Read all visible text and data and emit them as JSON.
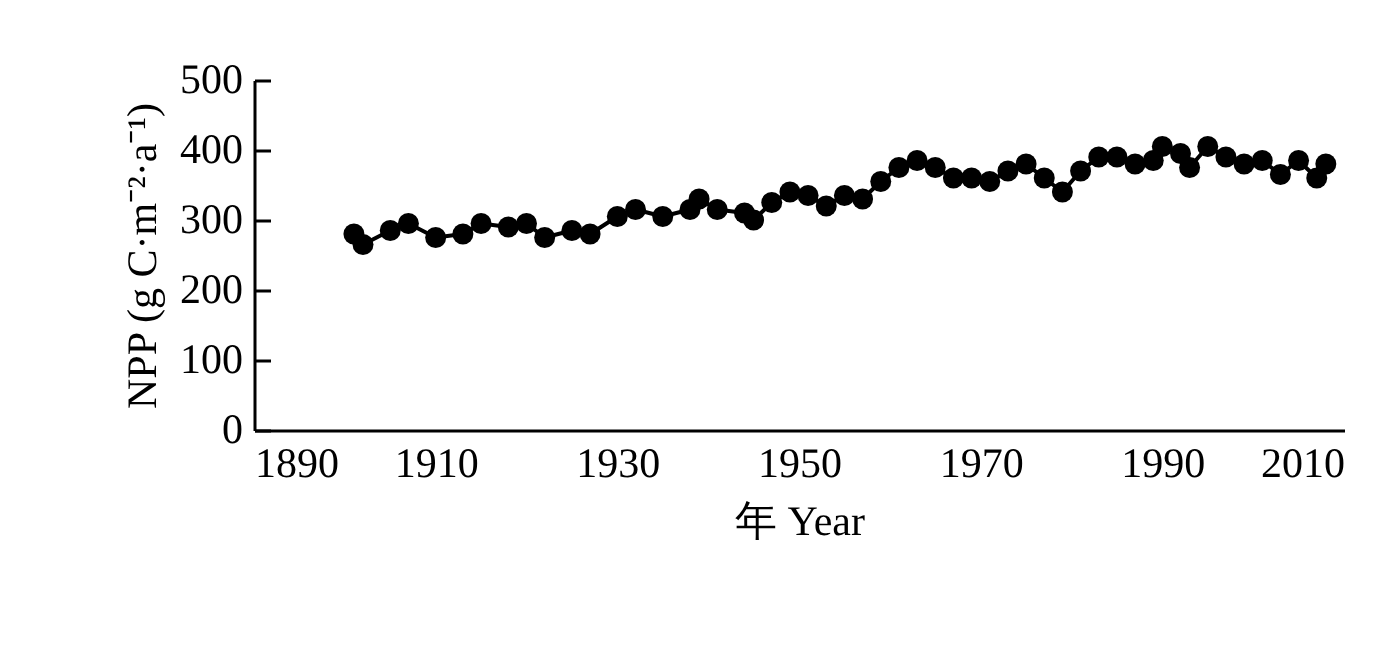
{
  "chart_data": {
    "type": "line",
    "xlabel": "年 Year",
    "ylabel": "NPP (g C·m⁻²·a⁻¹)",
    "xlim": [
      1890,
      2010
    ],
    "xticks": [
      1890,
      1910,
      1930,
      1950,
      1970,
      1990,
      2010
    ],
    "ylim": [
      0,
      500
    ],
    "yticks": [
      0,
      100,
      200,
      300,
      400,
      500
    ],
    "grid": false,
    "marker": "circle",
    "line_style": "solid",
    "x": [
      1901,
      1902,
      1905,
      1907,
      1910,
      1913,
      1915,
      1918,
      1920,
      1922,
      1925,
      1927,
      1930,
      1932,
      1935,
      1938,
      1939,
      1941,
      1944,
      1945,
      1947,
      1949,
      1951,
      1953,
      1955,
      1957,
      1959,
      1961,
      1963,
      1965,
      1967,
      1969,
      1971,
      1973,
      1975,
      1977,
      1979,
      1981,
      1983,
      1985,
      1987,
      1989,
      1990,
      1992,
      1993,
      1995,
      1997,
      1999,
      2001,
      2003,
      2005,
      2007,
      2008
    ],
    "series": [
      {
        "color": "#000000",
        "values": [
          280,
          265,
          285,
          295,
          275,
          280,
          295,
          290,
          295,
          275,
          285,
          280,
          305,
          315,
          305,
          315,
          330,
          315,
          310,
          300,
          325,
          340,
          335,
          320,
          335,
          330,
          355,
          375,
          385,
          375,
          360,
          360,
          355,
          370,
          380,
          360,
          340,
          370,
          390,
          390,
          380,
          385,
          405,
          395,
          375,
          405,
          390,
          380,
          385,
          365,
          385,
          360,
          380
        ]
      }
    ]
  }
}
